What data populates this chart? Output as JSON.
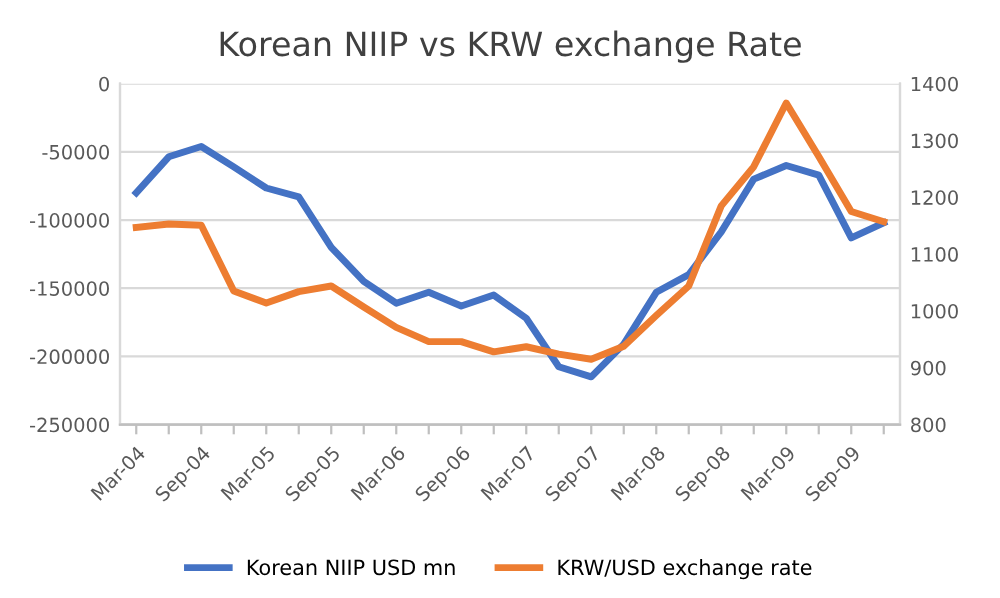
{
  "chart_data": {
    "type": "line",
    "title": "Korean NIIP vs KRW exchange Rate",
    "categories": [
      "Mar-04",
      null,
      "Sep-04",
      null,
      "Mar-05",
      null,
      "Sep-05",
      null,
      "Mar-06",
      null,
      "Sep-06",
      null,
      "Mar-07",
      null,
      "Sep-07",
      null,
      "Mar-08",
      null,
      "Sep-08",
      null,
      "Mar-09",
      null,
      "Sep-09",
      null
    ],
    "series": [
      {
        "name": "Korean NIIP USD mn",
        "color": "#4472c4",
        "values": [
          -80000,
          -53600,
          -46000,
          -61000,
          -76500,
          -83000,
          -120000,
          -145000,
          -161000,
          -153000,
          -163000,
          -155000,
          -172000,
          -207600,
          -215000,
          -191000,
          -153000,
          -140000,
          -108700,
          -70000,
          -60000,
          -67000,
          -113000,
          -102000
        ]
      },
      {
        "name": "KRW/USD exchange rate",
        "color": "#ed7d31",
        "axis": "y2",
        "values": [
          1147,
          1153,
          1151,
          1035,
          1014,
          1034,
          1044,
          1007,
          971,
          946,
          946,
          928,
          937,
          924,
          915,
          938,
          992,
          1044,
          1185,
          1254,
          1366,
          1272,
          1175,
          1157
        ]
      }
    ],
    "ylim": [
      -250000,
      0
    ],
    "yticks": [
      -250000,
      -200000,
      -150000,
      -100000,
      -50000,
      0
    ],
    "y2lim": [
      800,
      1400
    ],
    "y2ticks": [
      800,
      900,
      1000,
      1100,
      1200,
      1300,
      1400
    ],
    "grid": "y",
    "legend": "bottom",
    "marker": "none",
    "line_style": "solid"
  }
}
